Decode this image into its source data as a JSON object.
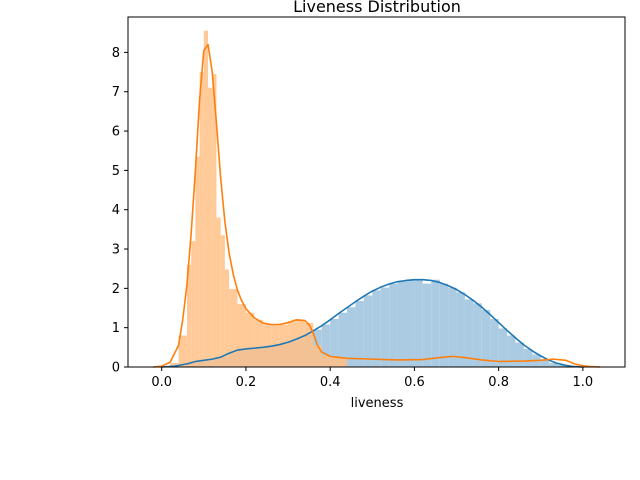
{
  "chart_data": {
    "type": "area",
    "title": "Liveness Distribution",
    "xlabel": "liveness",
    "ylabel": "",
    "xlim": [
      -0.08,
      1.1
    ],
    "ylim": [
      0,
      8.9
    ],
    "x_ticks": [
      0.0,
      0.2,
      0.4,
      0.6,
      0.8,
      1.0
    ],
    "x_tick_labels": [
      "0.0",
      "0.2",
      "0.4",
      "0.6",
      "0.8",
      "1.0"
    ],
    "y_ticks": [
      0,
      1,
      2,
      3,
      4,
      5,
      6,
      7,
      8
    ],
    "y_tick_labels": [
      "0",
      "1",
      "2",
      "3",
      "4",
      "5",
      "6",
      "7",
      "8"
    ],
    "grid": false,
    "series": [
      {
        "color": "#1f77b4",
        "hist_color": "#a6c8e0",
        "hist_bins": [
          [
            0.0,
            0.02,
            0.0
          ],
          [
            0.02,
            0.04,
            0.0
          ],
          [
            0.04,
            0.06,
            0.0
          ],
          [
            0.06,
            0.08,
            0.1
          ],
          [
            0.08,
            0.1,
            0.15
          ],
          [
            0.1,
            0.12,
            0.18
          ],
          [
            0.12,
            0.14,
            0.2
          ],
          [
            0.14,
            0.16,
            0.25
          ],
          [
            0.16,
            0.18,
            0.35
          ],
          [
            0.18,
            0.2,
            0.42
          ],
          [
            0.2,
            0.22,
            0.46
          ],
          [
            0.22,
            0.24,
            0.48
          ],
          [
            0.24,
            0.26,
            0.5
          ],
          [
            0.26,
            0.28,
            0.54
          ],
          [
            0.28,
            0.3,
            0.58
          ],
          [
            0.3,
            0.32,
            0.64
          ],
          [
            0.32,
            0.34,
            0.72
          ],
          [
            0.34,
            0.36,
            0.82
          ],
          [
            0.36,
            0.38,
            0.95
          ],
          [
            0.38,
            0.4,
            1.08
          ],
          [
            0.4,
            0.42,
            1.22
          ],
          [
            0.42,
            0.44,
            1.38
          ],
          [
            0.44,
            0.46,
            1.52
          ],
          [
            0.46,
            0.48,
            1.68
          ],
          [
            0.48,
            0.5,
            1.82
          ],
          [
            0.5,
            0.52,
            1.95
          ],
          [
            0.52,
            0.54,
            2.02
          ],
          [
            0.54,
            0.56,
            2.12
          ],
          [
            0.56,
            0.58,
            2.18
          ],
          [
            0.58,
            0.6,
            2.22
          ],
          [
            0.6,
            0.62,
            2.2
          ],
          [
            0.62,
            0.64,
            2.12
          ],
          [
            0.64,
            0.66,
            2.22
          ],
          [
            0.66,
            0.68,
            2.12
          ],
          [
            0.68,
            0.7,
            2.02
          ],
          [
            0.7,
            0.72,
            1.9
          ],
          [
            0.72,
            0.74,
            1.72
          ],
          [
            0.74,
            0.76,
            1.62
          ],
          [
            0.76,
            0.78,
            1.45
          ],
          [
            0.78,
            0.8,
            1.22
          ],
          [
            0.8,
            0.82,
            0.98
          ],
          [
            0.82,
            0.84,
            0.8
          ],
          [
            0.84,
            0.86,
            0.62
          ],
          [
            0.86,
            0.88,
            0.46
          ],
          [
            0.88,
            0.9,
            0.32
          ],
          [
            0.9,
            0.92,
            0.2
          ],
          [
            0.92,
            0.94,
            0.1
          ],
          [
            0.94,
            0.96,
            0.05
          ]
        ],
        "kde": [
          [
            0.0,
            0.0
          ],
          [
            0.03,
            0.02
          ],
          [
            0.06,
            0.08
          ],
          [
            0.08,
            0.14
          ],
          [
            0.1,
            0.17
          ],
          [
            0.12,
            0.2
          ],
          [
            0.14,
            0.25
          ],
          [
            0.16,
            0.35
          ],
          [
            0.18,
            0.43
          ],
          [
            0.2,
            0.46
          ],
          [
            0.22,
            0.48
          ],
          [
            0.24,
            0.5
          ],
          [
            0.26,
            0.53
          ],
          [
            0.28,
            0.57
          ],
          [
            0.3,
            0.63
          ],
          [
            0.32,
            0.71
          ],
          [
            0.34,
            0.8
          ],
          [
            0.36,
            0.92
          ],
          [
            0.38,
            1.05
          ],
          [
            0.4,
            1.2
          ],
          [
            0.42,
            1.36
          ],
          [
            0.44,
            1.51
          ],
          [
            0.46,
            1.66
          ],
          [
            0.48,
            1.8
          ],
          [
            0.5,
            1.93
          ],
          [
            0.52,
            2.03
          ],
          [
            0.54,
            2.11
          ],
          [
            0.56,
            2.17
          ],
          [
            0.58,
            2.2
          ],
          [
            0.6,
            2.22
          ],
          [
            0.62,
            2.22
          ],
          [
            0.64,
            2.2
          ],
          [
            0.66,
            2.15
          ],
          [
            0.68,
            2.07
          ],
          [
            0.7,
            1.97
          ],
          [
            0.72,
            1.84
          ],
          [
            0.74,
            1.69
          ],
          [
            0.76,
            1.52
          ],
          [
            0.78,
            1.33
          ],
          [
            0.8,
            1.13
          ],
          [
            0.82,
            0.93
          ],
          [
            0.84,
            0.74
          ],
          [
            0.86,
            0.56
          ],
          [
            0.88,
            0.41
          ],
          [
            0.9,
            0.28
          ],
          [
            0.92,
            0.17
          ],
          [
            0.94,
            0.09
          ],
          [
            0.96,
            0.04
          ],
          [
            0.98,
            0.01
          ],
          [
            1.0,
            0.0
          ]
        ]
      },
      {
        "color": "#ff7f0e",
        "hist_color": "#ffbf86",
        "hist_bins": [
          [
            0.02,
            0.04,
            0.1
          ],
          [
            0.04,
            0.06,
            0.8
          ],
          [
            0.06,
            0.07,
            2.6
          ],
          [
            0.07,
            0.08,
            3.2
          ],
          [
            0.08,
            0.09,
            5.35
          ],
          [
            0.09,
            0.1,
            7.5
          ],
          [
            0.1,
            0.11,
            8.55
          ],
          [
            0.11,
            0.12,
            7.1
          ],
          [
            0.12,
            0.13,
            7.45
          ],
          [
            0.13,
            0.14,
            3.8
          ],
          [
            0.14,
            0.15,
            3.35
          ],
          [
            0.15,
            0.16,
            2.48
          ],
          [
            0.16,
            0.18,
            1.98
          ],
          [
            0.18,
            0.2,
            1.6
          ],
          [
            0.2,
            0.22,
            1.38
          ],
          [
            0.22,
            0.24,
            1.2
          ],
          [
            0.24,
            0.26,
            1.08
          ],
          [
            0.26,
            0.28,
            1.05
          ],
          [
            0.28,
            0.3,
            1.08
          ],
          [
            0.3,
            0.32,
            1.15
          ],
          [
            0.32,
            0.34,
            1.2
          ],
          [
            0.34,
            0.36,
            1.12
          ],
          [
            0.36,
            0.38,
            0.55
          ],
          [
            0.38,
            0.4,
            0.3
          ],
          [
            0.4,
            0.42,
            0.25
          ],
          [
            0.42,
            0.44,
            0.22
          ]
        ],
        "kde": [
          [
            -0.02,
            0.0
          ],
          [
            0.0,
            0.02
          ],
          [
            0.02,
            0.12
          ],
          [
            0.04,
            0.55
          ],
          [
            0.05,
            1.2
          ],
          [
            0.06,
            2.1
          ],
          [
            0.07,
            3.4
          ],
          [
            0.08,
            5.0
          ],
          [
            0.09,
            6.8
          ],
          [
            0.1,
            8.05
          ],
          [
            0.11,
            8.2
          ],
          [
            0.12,
            7.5
          ],
          [
            0.13,
            6.2
          ],
          [
            0.14,
            4.8
          ],
          [
            0.15,
            3.7
          ],
          [
            0.16,
            2.9
          ],
          [
            0.17,
            2.35
          ],
          [
            0.18,
            1.95
          ],
          [
            0.19,
            1.68
          ],
          [
            0.2,
            1.48
          ],
          [
            0.22,
            1.25
          ],
          [
            0.24,
            1.12
          ],
          [
            0.26,
            1.08
          ],
          [
            0.28,
            1.08
          ],
          [
            0.3,
            1.13
          ],
          [
            0.32,
            1.2
          ],
          [
            0.34,
            1.18
          ],
          [
            0.35,
            1.08
          ],
          [
            0.36,
            0.85
          ],
          [
            0.37,
            0.55
          ],
          [
            0.38,
            0.38
          ],
          [
            0.4,
            0.27
          ],
          [
            0.44,
            0.22
          ],
          [
            0.5,
            0.2
          ],
          [
            0.56,
            0.18
          ],
          [
            0.62,
            0.19
          ],
          [
            0.66,
            0.24
          ],
          [
            0.69,
            0.27
          ],
          [
            0.72,
            0.24
          ],
          [
            0.76,
            0.18
          ],
          [
            0.8,
            0.14
          ],
          [
            0.86,
            0.15
          ],
          [
            0.9,
            0.17
          ],
          [
            0.93,
            0.2
          ],
          [
            0.96,
            0.17
          ],
          [
            0.98,
            0.08
          ],
          [
            1.0,
            0.03
          ],
          [
            1.02,
            0.01
          ],
          [
            1.04,
            0.0
          ]
        ]
      }
    ]
  }
}
